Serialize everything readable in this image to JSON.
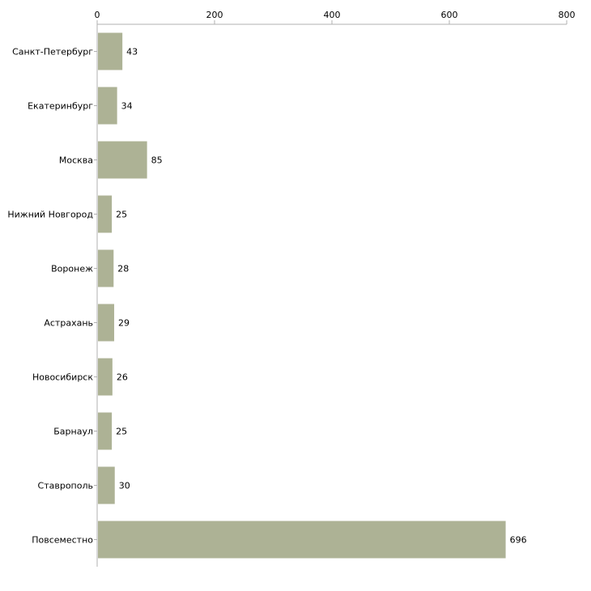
{
  "chart_data": {
    "type": "bar",
    "orientation": "horizontal",
    "title": "",
    "xlabel": "",
    "ylabel": "",
    "xlim": [
      0,
      800
    ],
    "x_ticks": [
      0,
      200,
      400,
      600,
      800
    ],
    "grid": false,
    "legend": "none",
    "bar_color": "#adb295",
    "categories": [
      "Санкт-Петербург",
      "Екатеринбург",
      "Москва",
      "Нижний Новгород",
      "Воронеж",
      "Астрахань",
      "Новосибирск",
      "Барнаул",
      "Ставрополь",
      "Повсеместно"
    ],
    "values": [
      43,
      34,
      85,
      25,
      28,
      29,
      26,
      25,
      30,
      696
    ]
  }
}
